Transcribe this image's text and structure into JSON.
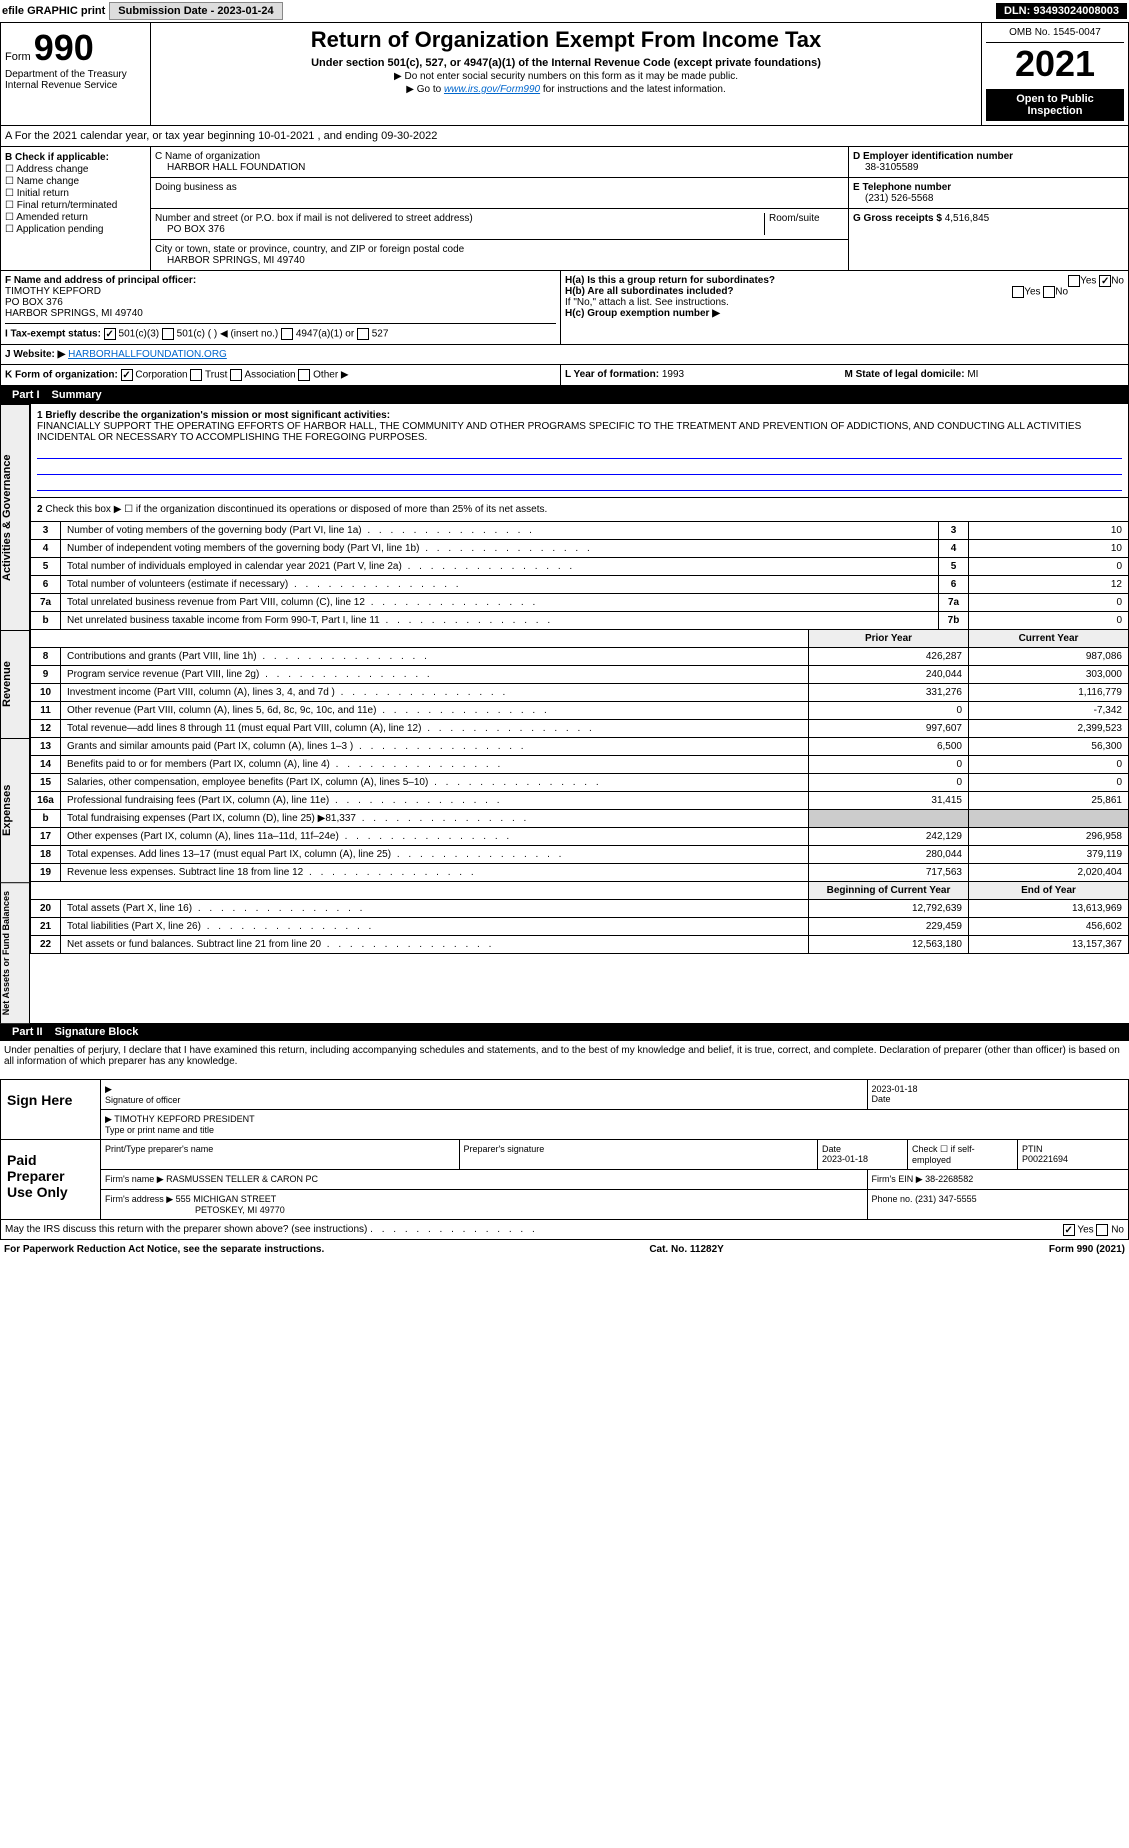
{
  "top": {
    "efile": "efile GRAPHIC print",
    "submission_btn": "Submission Date - 2023-01-24",
    "dln": "DLN: 93493024008003"
  },
  "header": {
    "form_label": "Form",
    "form_number": "990",
    "dept": "Department of the Treasury Internal Revenue Service",
    "title": "Return of Organization Exempt From Income Tax",
    "subtitle": "Under section 501(c), 527, or 4947(a)(1) of the Internal Revenue Code (except private foundations)",
    "note1": "▶ Do not enter social security numbers on this form as it may be made public.",
    "note2_pre": "▶ Go to ",
    "note2_link": "www.irs.gov/Form990",
    "note2_post": " for instructions and the latest information.",
    "omb": "OMB No. 1545-0047",
    "year": "2021",
    "open_public": "Open to Public Inspection"
  },
  "a": {
    "text": "A For the 2021 calendar year, or tax year beginning 10-01-2021    , and ending 09-30-2022"
  },
  "b": {
    "label": "B Check if applicable:",
    "items": [
      "Address change",
      "Name change",
      "Initial return",
      "Final return/terminated",
      "Amended return",
      "Application pending"
    ]
  },
  "c": {
    "name_label": "C Name of organization",
    "name": "HARBOR HALL FOUNDATION",
    "dba_label": "Doing business as",
    "addr_label": "Number and street (or P.O. box if mail is not delivered to street address)",
    "room_label": "Room/suite",
    "addr": "PO BOX 376",
    "city_label": "City or town, state or province, country, and ZIP or foreign postal code",
    "city": "HARBOR SPRINGS, MI  49740"
  },
  "d": {
    "label": "D Employer identification number",
    "value": "38-3105589"
  },
  "e": {
    "label": "E Telephone number",
    "value": "(231) 526-5568"
  },
  "g": {
    "label": "G Gross receipts $",
    "value": "4,516,845"
  },
  "f": {
    "label": "F Name and address of principal officer:",
    "name": "TIMOTHY KEPFORD",
    "addr1": "PO BOX 376",
    "addr2": "HARBOR SPRINGS, MI  49740"
  },
  "h": {
    "a_label": "H(a)  Is this a group return for subordinates?",
    "a_yes": "Yes",
    "a_no": "No",
    "b_label": "H(b)  Are all subordinates included?",
    "b_yes": "Yes",
    "b_no": "No",
    "b_note": "If \"No,\" attach a list. See instructions.",
    "c_label": "H(c)  Group exemption number ▶"
  },
  "i": {
    "label": "I  Tax-exempt status:",
    "opts": [
      "501(c)(3)",
      "501(c) (   ) ◀ (insert no.)",
      "4947(a)(1) or",
      "527"
    ]
  },
  "j": {
    "label": "J  Website: ▶",
    "value": "HARBORHALLFOUNDATION.ORG"
  },
  "k": {
    "label": "K Form of organization:",
    "opts": [
      "Corporation",
      "Trust",
      "Association",
      "Other ▶"
    ]
  },
  "l": {
    "label": "L Year of formation:",
    "value": "1993"
  },
  "m": {
    "label": "M State of legal domicile:",
    "value": "MI"
  },
  "part1": {
    "title": "Part I",
    "name": "Summary",
    "line1_label": "1  Briefly describe the organization's mission or most significant activities:",
    "line1_text": "FINANCIALLY SUPPORT THE OPERATING EFFORTS OF HARBOR HALL, THE COMMUNITY AND OTHER PROGRAMS SPECIFIC TO THE TREATMENT AND PREVENTION OF ADDICTIONS, AND CONDUCTING ALL ACTIVITIES INCIDENTAL OR NECESSARY TO ACCOMPLISHING THE FOREGOING PURPOSES.",
    "line2": "Check this box ▶ ☐  if the organization discontinued its operations or disposed of more than 25% of its net assets.",
    "gov_lines": [
      {
        "n": "3",
        "d": "Number of voting members of the governing body (Part VI, line 1a)",
        "box": "3",
        "v": "10"
      },
      {
        "n": "4",
        "d": "Number of independent voting members of the governing body (Part VI, line 1b)",
        "box": "4",
        "v": "10"
      },
      {
        "n": "5",
        "d": "Total number of individuals employed in calendar year 2021 (Part V, line 2a)",
        "box": "5",
        "v": "0"
      },
      {
        "n": "6",
        "d": "Total number of volunteers (estimate if necessary)",
        "box": "6",
        "v": "12"
      },
      {
        "n": "7a",
        "d": "Total unrelated business revenue from Part VIII, column (C), line 12",
        "box": "7a",
        "v": "0"
      },
      {
        "n": "b",
        "d": "Net unrelated business taxable income from Form 990-T, Part I, line 11",
        "box": "7b",
        "v": "0"
      }
    ],
    "col_prior": "Prior Year",
    "col_current": "Current Year",
    "rev_lines": [
      {
        "n": "8",
        "d": "Contributions and grants (Part VIII, line 1h)",
        "p": "426,287",
        "c": "987,086"
      },
      {
        "n": "9",
        "d": "Program service revenue (Part VIII, line 2g)",
        "p": "240,044",
        "c": "303,000"
      },
      {
        "n": "10",
        "d": "Investment income (Part VIII, column (A), lines 3, 4, and 7d )",
        "p": "331,276",
        "c": "1,116,779"
      },
      {
        "n": "11",
        "d": "Other revenue (Part VIII, column (A), lines 5, 6d, 8c, 9c, 10c, and 11e)",
        "p": "0",
        "c": "-7,342"
      },
      {
        "n": "12",
        "d": "Total revenue—add lines 8 through 11 (must equal Part VIII, column (A), line 12)",
        "p": "997,607",
        "c": "2,399,523"
      }
    ],
    "exp_lines": [
      {
        "n": "13",
        "d": "Grants and similar amounts paid (Part IX, column (A), lines 1–3 )",
        "p": "6,500",
        "c": "56,300"
      },
      {
        "n": "14",
        "d": "Benefits paid to or for members (Part IX, column (A), line 4)",
        "p": "0",
        "c": "0"
      },
      {
        "n": "15",
        "d": "Salaries, other compensation, employee benefits (Part IX, column (A), lines 5–10)",
        "p": "0",
        "c": "0"
      },
      {
        "n": "16a",
        "d": "Professional fundraising fees (Part IX, column (A), line 11e)",
        "p": "31,415",
        "c": "25,861"
      },
      {
        "n": "b",
        "d": "Total fundraising expenses (Part IX, column (D), line 25) ▶81,337",
        "p": "",
        "c": ""
      },
      {
        "n": "17",
        "d": "Other expenses (Part IX, column (A), lines 11a–11d, 11f–24e)",
        "p": "242,129",
        "c": "296,958"
      },
      {
        "n": "18",
        "d": "Total expenses. Add lines 13–17 (must equal Part IX, column (A), line 25)",
        "p": "280,044",
        "c": "379,119"
      },
      {
        "n": "19",
        "d": "Revenue less expenses. Subtract line 18 from line 12",
        "p": "717,563",
        "c": "2,020,404"
      }
    ],
    "col_beg": "Beginning of Current Year",
    "col_end": "End of Year",
    "na_lines": [
      {
        "n": "20",
        "d": "Total assets (Part X, line 16)",
        "p": "12,792,639",
        "c": "13,613,969"
      },
      {
        "n": "21",
        "d": "Total liabilities (Part X, line 26)",
        "p": "229,459",
        "c": "456,602"
      },
      {
        "n": "22",
        "d": "Net assets or fund balances. Subtract line 21 from line 20",
        "p": "12,563,180",
        "c": "13,157,367"
      }
    ],
    "vtab_gov": "Activities & Governance",
    "vtab_rev": "Revenue",
    "vtab_exp": "Expenses",
    "vtab_na": "Net Assets or Fund Balances"
  },
  "part2": {
    "title": "Part II",
    "name": "Signature Block",
    "penalties": "Under penalties of perjury, I declare that I have examined this return, including accompanying schedules and statements, and to the best of my knowledge and belief, it is true, correct, and complete. Declaration of preparer (other than officer) is based on all information of which preparer has any knowledge.",
    "sign_here": "Sign Here",
    "sig_officer": "Signature of officer",
    "sig_date": "Date",
    "sig_date_val": "2023-01-18",
    "sig_name": "TIMOTHY KEPFORD  PRESIDENT",
    "sig_name_label": "Type or print name and title",
    "paid": "Paid Preparer Use Only",
    "prep_name_label": "Print/Type preparer's name",
    "prep_sig_label": "Preparer's signature",
    "prep_date_label": "Date",
    "prep_date": "2023-01-18",
    "prep_check": "Check ☐ if self-employed",
    "ptin_label": "PTIN",
    "ptin": "P00221694",
    "firm_name_label": "Firm's name    ▶",
    "firm_name": "RASMUSSEN TELLER & CARON PC",
    "firm_ein_label": "Firm's EIN ▶",
    "firm_ein": "38-2268582",
    "firm_addr_label": "Firm's address ▶",
    "firm_addr": "555 MICHIGAN STREET",
    "firm_addr2": "PETOSKEY, MI  49770",
    "phone_label": "Phone no.",
    "phone": "(231) 347-5555",
    "may_irs": "May the IRS discuss this return with the preparer shown above? (see instructions)",
    "may_yes": "Yes",
    "may_no": "No"
  },
  "footer": {
    "left": "For Paperwork Reduction Act Notice, see the separate instructions.",
    "center": "Cat. No. 11282Y",
    "right": "Form 990 (2021)"
  }
}
